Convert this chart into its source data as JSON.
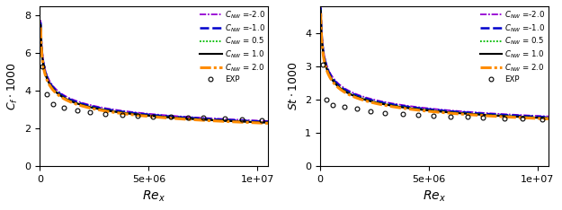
{
  "ylabel_left": "$C_f \\cdot 1000$",
  "ylabel_right": "$St \\cdot 1000$",
  "xlabel": "$Re_x$",
  "xlim": [
    0,
    10500000.0
  ],
  "ylim_left": [
    0,
    8.5
  ],
  "ylim_right": [
    0,
    4.8
  ],
  "yticks_left": [
    0,
    2,
    4,
    6,
    8
  ],
  "yticks_right": [
    0,
    1,
    2,
    3,
    4
  ],
  "xticks": [
    0,
    5000000,
    10000000
  ],
  "xticklabels": [
    "0",
    "5e+06",
    "1e+07"
  ],
  "lines": [
    {
      "label": "-2.0",
      "color": "#9400D3",
      "lw": 1.3,
      "ls": "dashdot",
      "A_cf": 0.061,
      "A_st": 0.038
    },
    {
      "label": "-1.0",
      "color": "#0000CC",
      "lw": 1.8,
      "ls": "dashed",
      "A_cf": 0.06,
      "A_st": 0.0374
    },
    {
      "label": " 0.5",
      "color": "#00BB00",
      "lw": 1.3,
      "ls": "dotted",
      "A_cf": 0.0592,
      "A_st": 0.0369
    },
    {
      "label": " 1.0",
      "color": "#000000",
      "lw": 1.5,
      "ls": "solid",
      "A_cf": 0.0588,
      "A_st": 0.0366
    },
    {
      "label": " 2.0",
      "color": "#FF8C00",
      "lw": 2.2,
      "ls": "dashdot",
      "A_cf": 0.058,
      "A_st": 0.0361
    }
  ],
  "exp_cf_x": [
    120000,
    300000,
    600000,
    1100000,
    1700000,
    2300000,
    3000000,
    3800000,
    4500000,
    5200000,
    6000000,
    6800000,
    7500000,
    8500000,
    9300000,
    10200000
  ],
  "exp_cf_y": [
    5.3,
    3.85,
    3.3,
    3.1,
    2.96,
    2.87,
    2.79,
    2.73,
    2.68,
    2.65,
    2.62,
    2.6,
    2.57,
    2.54,
    2.51,
    2.46
  ],
  "exp_st_x": [
    120000,
    300000,
    600000,
    1100000,
    1700000,
    2300000,
    3000000,
    3800000,
    4500000,
    5200000,
    6000000,
    6800000,
    7500000,
    8500000,
    9300000,
    10200000
  ],
  "exp_st_y": [
    3.05,
    2.0,
    1.85,
    1.78,
    1.72,
    1.65,
    1.61,
    1.57,
    1.54,
    1.52,
    1.5,
    1.48,
    1.46,
    1.44,
    1.43,
    1.41
  ],
  "exp_label": "EXP",
  "background": "#ffffff",
  "figsize": [
    6.25,
    2.34
  ],
  "dpi": 100
}
